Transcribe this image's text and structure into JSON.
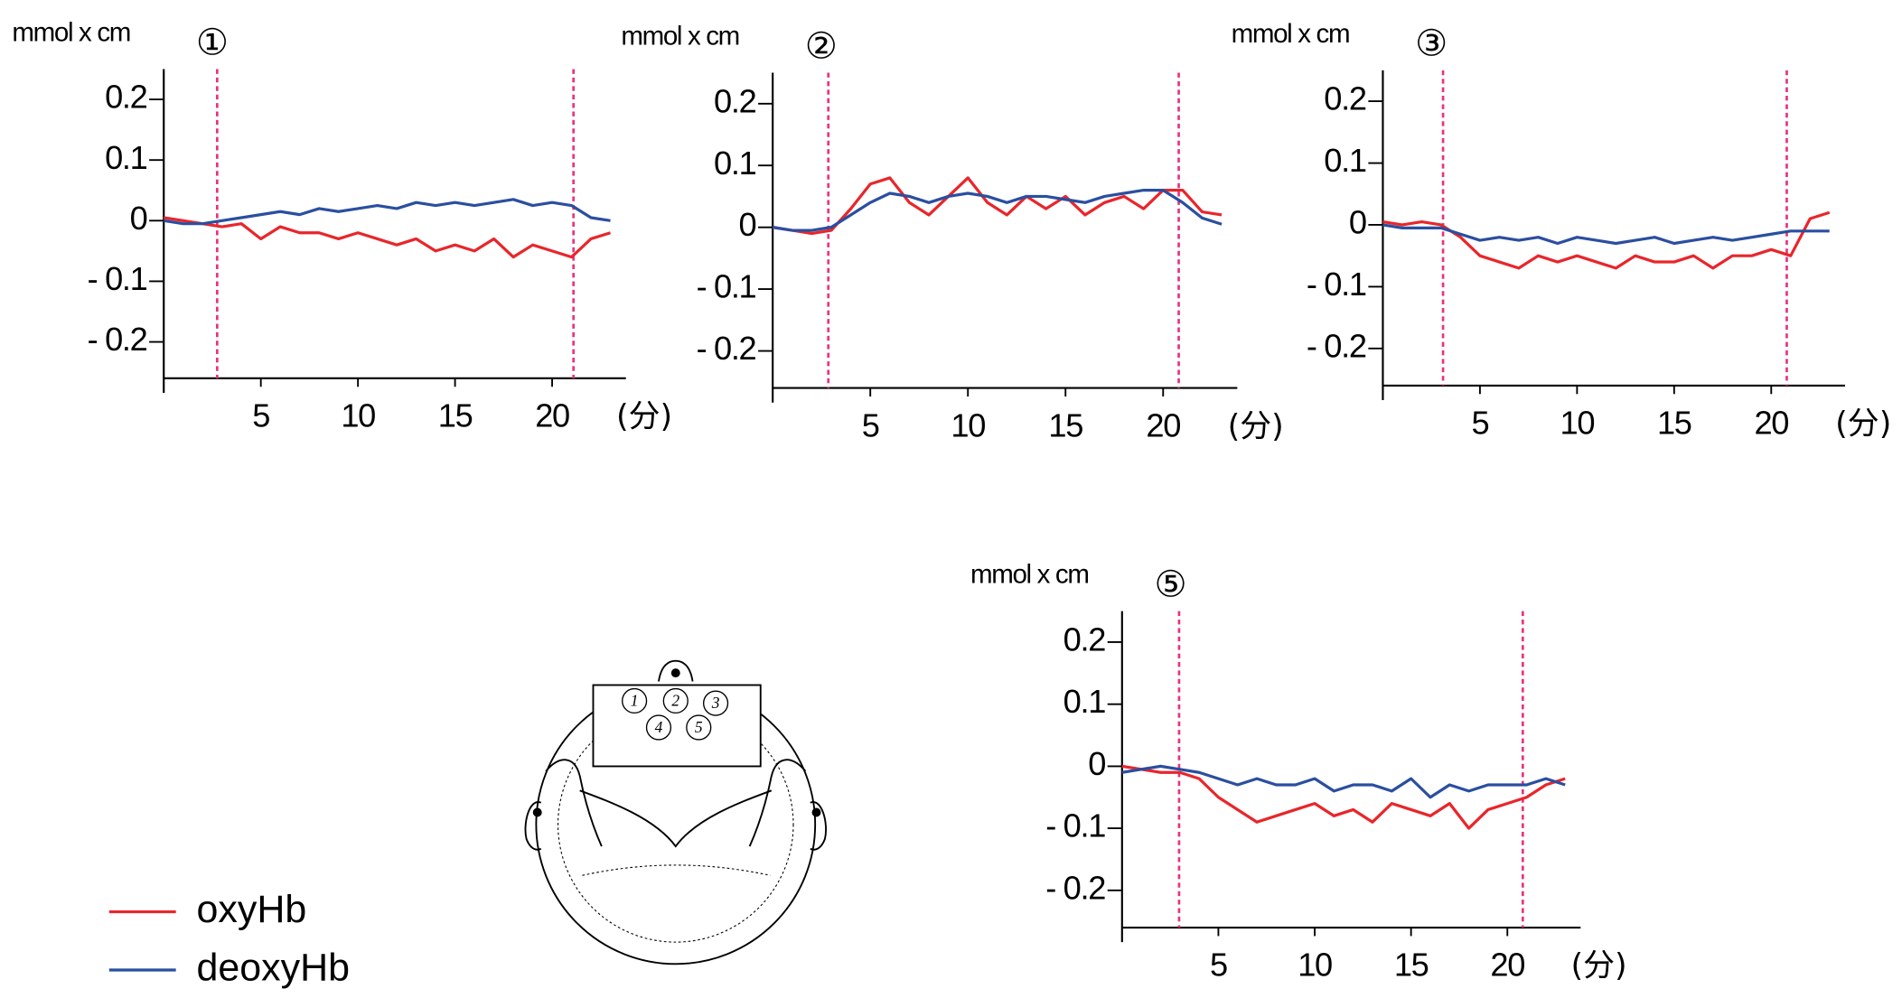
{
  "chart_data": [
    {
      "type": "line",
      "title": "①",
      "ylabel": "mmol x cm",
      "xlabel": "(分)",
      "x": [
        0,
        1,
        2,
        3,
        4,
        5,
        6,
        7,
        8,
        9,
        10,
        11,
        12,
        13,
        14,
        15,
        16,
        17,
        18,
        19,
        20,
        21,
        22,
        23
      ],
      "series": [
        {
          "color": "#e8262b",
          "values": [
            0.005,
            0,
            -0.005,
            -0.01,
            -0.005,
            -0.03,
            -0.01,
            -0.02,
            -0.02,
            -0.03,
            -0.02,
            -0.03,
            -0.04,
            -0.03,
            -0.05,
            -0.04,
            -0.05,
            -0.03,
            -0.06,
            -0.04,
            -0.05,
            -0.06,
            -0.03,
            -0.02
          ]
        },
        {
          "color": "#2a4fa0",
          "values": [
            0,
            -0.005,
            -0.005,
            0,
            0.005,
            0.01,
            0.015,
            0.01,
            0.02,
            0.015,
            0.02,
            0.025,
            0.02,
            0.03,
            0.025,
            0.03,
            0.025,
            0.03,
            0.035,
            0.025,
            0.03,
            0.025,
            0.005,
            0
          ]
        }
      ],
      "markers": [
        2.75,
        21.1
      ],
      "marker_color": "#e8337f",
      "xlim": [
        0,
        23.8
      ],
      "ylim": [
        -0.26,
        0.25
      ],
      "xticks": [
        5,
        10,
        15,
        20
      ],
      "yticks": [
        0.2,
        0.1,
        0,
        {
          "value": -0.1,
          "label": "- 0.1"
        },
        {
          "value": -0.2,
          "label": "- 0.2"
        }
      ]
    },
    {
      "type": "line",
      "title": "②",
      "ylabel": "mmol x cm",
      "xlabel": "(分)",
      "x": [
        0,
        1,
        2,
        3,
        4,
        5,
        6,
        7,
        8,
        9,
        10,
        11,
        12,
        13,
        14,
        15,
        16,
        17,
        18,
        19,
        20,
        21,
        22,
        23
      ],
      "series": [
        {
          "color": "#e8262b",
          "values": [
            0,
            -0.005,
            -0.01,
            -0.005,
            0.03,
            0.07,
            0.08,
            0.04,
            0.02,
            0.05,
            0.08,
            0.04,
            0.02,
            0.05,
            0.03,
            0.05,
            0.02,
            0.04,
            0.05,
            0.03,
            0.06,
            0.06,
            0.025,
            0.02
          ]
        },
        {
          "color": "#2a4fa0",
          "values": [
            0,
            -0.005,
            -0.005,
            0,
            0.02,
            0.04,
            0.055,
            0.05,
            0.04,
            0.05,
            0.055,
            0.05,
            0.04,
            0.05,
            0.05,
            0.045,
            0.04,
            0.05,
            0.055,
            0.06,
            0.06,
            0.04,
            0.015,
            0.005
          ]
        }
      ],
      "markers": [
        2.85,
        20.8
      ],
      "marker_color": "#e8337f",
      "xlim": [
        0,
        23.8
      ],
      "ylim": [
        -0.26,
        0.25
      ],
      "xticks": [
        5,
        10,
        15,
        20
      ],
      "yticks": [
        0.2,
        0.1,
        0,
        {
          "value": -0.1,
          "label": "- 0.1"
        },
        {
          "value": -0.2,
          "label": "- 0.2"
        }
      ]
    },
    {
      "type": "line",
      "title": "③",
      "ylabel": "mmol x cm",
      "xlabel": "(分)",
      "x": [
        0,
        1,
        2,
        3,
        4,
        5,
        6,
        7,
        8,
        9,
        10,
        11,
        12,
        13,
        14,
        15,
        16,
        17,
        18,
        19,
        20,
        21,
        22,
        23
      ],
      "series": [
        {
          "color": "#e8262b",
          "values": [
            0.005,
            0,
            0.005,
            0,
            -0.02,
            -0.05,
            -0.06,
            -0.07,
            -0.05,
            -0.06,
            -0.05,
            -0.06,
            -0.07,
            -0.05,
            -0.06,
            -0.06,
            -0.05,
            -0.07,
            -0.05,
            -0.05,
            -0.04,
            -0.05,
            0.01,
            0.02
          ]
        },
        {
          "color": "#2a4fa0",
          "values": [
            0,
            -0.005,
            -0.005,
            -0.005,
            -0.015,
            -0.025,
            -0.02,
            -0.025,
            -0.02,
            -0.03,
            -0.02,
            -0.025,
            -0.03,
            -0.025,
            -0.02,
            -0.03,
            -0.025,
            -0.02,
            -0.025,
            -0.02,
            -0.015,
            -0.01,
            -0.01,
            -0.01
          ]
        }
      ],
      "markers": [
        3.1,
        20.8
      ],
      "marker_color": "#e8337f",
      "xlim": [
        0,
        23.8
      ],
      "ylim": [
        -0.26,
        0.25
      ],
      "xticks": [
        5,
        10,
        15,
        20
      ],
      "yticks": [
        0.2,
        0.1,
        0,
        {
          "value": -0.1,
          "label": "- 0.1"
        },
        {
          "value": -0.2,
          "label": "- 0.2"
        }
      ]
    },
    {
      "type": "line",
      "title": "⑤",
      "ylabel": "mmol x cm",
      "xlabel": "(分)",
      "x": [
        0,
        1,
        2,
        3,
        4,
        5,
        6,
        7,
        8,
        9,
        10,
        11,
        12,
        13,
        14,
        15,
        16,
        17,
        18,
        19,
        20,
        21,
        22,
        23
      ],
      "series": [
        {
          "color": "#e8262b",
          "values": [
            0,
            -0.005,
            -0.01,
            -0.01,
            -0.02,
            -0.05,
            -0.07,
            -0.09,
            -0.08,
            -0.07,
            -0.06,
            -0.08,
            -0.07,
            -0.09,
            -0.06,
            -0.07,
            -0.08,
            -0.06,
            -0.1,
            -0.07,
            -0.06,
            -0.05,
            -0.03,
            -0.02
          ]
        },
        {
          "color": "#2a4fa0",
          "values": [
            -0.01,
            -0.005,
            0,
            -0.005,
            -0.01,
            -0.02,
            -0.03,
            -0.02,
            -0.03,
            -0.03,
            -0.02,
            -0.04,
            -0.03,
            -0.03,
            -0.04,
            -0.02,
            -0.05,
            -0.03,
            -0.04,
            -0.03,
            -0.03,
            -0.03,
            -0.02,
            -0.03
          ]
        }
      ],
      "markers": [
        2.96,
        20.8
      ],
      "marker_color": "#e8337f",
      "xlim": [
        0,
        23.8
      ],
      "ylim": [
        -0.26,
        0.25
      ],
      "xticks": [
        5,
        10,
        15,
        20
      ],
      "yticks": [
        0.2,
        0.1,
        0,
        {
          "value": -0.1,
          "label": "- 0.1"
        },
        {
          "value": -0.2,
          "label": "- 0.2"
        }
      ]
    }
  ],
  "legend": [
    {
      "name": "oxyHb",
      "color": "#e8262b"
    },
    {
      "name": "deoxyHb",
      "color": "#2a4fa0"
    }
  ],
  "head_diagram": {
    "channels": [
      "1",
      "2",
      "3",
      "4",
      "5"
    ]
  }
}
